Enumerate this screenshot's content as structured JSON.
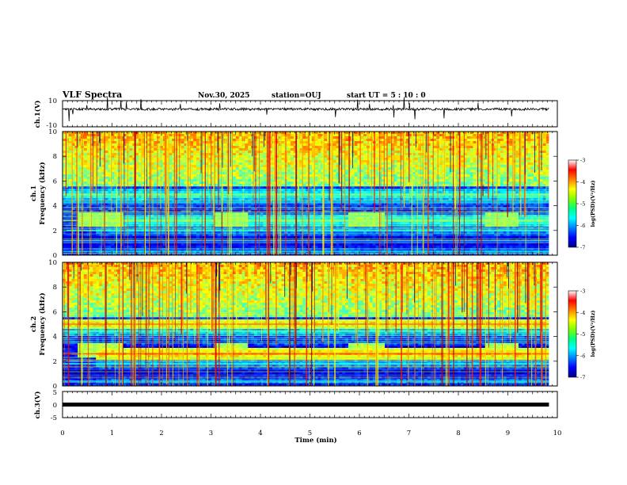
{
  "header": {
    "title": "VLF Spectra",
    "date": "Nov.30, 2025",
    "station": "station=OUJ",
    "start": "start  UT =   5 : 10 : 0"
  },
  "panels": {
    "ch1_wave": {
      "ylabel": "ch.1(V)",
      "yticks": [
        "10",
        "-10"
      ]
    },
    "ch1_spec": {
      "ylabel_top": "ch.1",
      "ylabel": "Frequency (kHz)",
      "yticks": [
        "0",
        "2",
        "4",
        "6",
        "8",
        "10"
      ]
    },
    "ch2_spec": {
      "ylabel_top": "ch.2",
      "ylabel": "Frequency (kHz)",
      "yticks": [
        "0",
        "2",
        "4",
        "6",
        "8",
        "10"
      ]
    },
    "ch3_wave": {
      "ylabel": "ch.3(V)",
      "yticks": [
        "5",
        "0",
        "-5"
      ]
    }
  },
  "colorbar": {
    "label": "log(PSD)(V²/Hz)",
    "ticks": [
      "-3",
      "-4",
      "-5",
      "-6",
      "-7"
    ],
    "colors": [
      "#000080",
      "#0000ff",
      "#0080ff",
      "#00ffff",
      "#00ff80",
      "#80ff00",
      "#ffff00",
      "#ff8000",
      "#ff0000",
      "#ffffff"
    ]
  },
  "xaxis": {
    "label": "Time (min)",
    "ticks": [
      "0",
      "1",
      "2",
      "3",
      "4",
      "5",
      "6",
      "7",
      "8",
      "9",
      "10"
    ]
  },
  "chart_data": {
    "type": "heatmap",
    "title": "VLF Spectra",
    "xlabel": "Time (min)",
    "xlim": [
      0,
      10
    ],
    "data_end_min": 9.83,
    "ch1_wave": {
      "ylim": [
        -10,
        10
      ],
      "baseline_v": 3.5
    },
    "ch3_wave": {
      "ylim": [
        -5,
        5
      ],
      "level_v": 0
    },
    "spectrogram": {
      "ylabel": "Frequency (kHz)",
      "ylim_khz": [
        0,
        10
      ],
      "zlabel": "log(PSD)(V²/Hz)",
      "zlim": [
        -7,
        -3
      ],
      "ch1_bands_khz": [
        {
          "f": 4.9,
          "level": -5.3
        },
        {
          "f": 4.3,
          "level": -6.0
        },
        {
          "f": 2.8,
          "level": -5.2
        },
        {
          "f": 2.0,
          "level": -5.8
        },
        {
          "f": 1.1,
          "level": -6.4
        },
        {
          "f": 0.3,
          "level": -6.0
        }
      ],
      "ch2_bands_khz": [
        {
          "f": 5.0,
          "level": -4.3
        },
        {
          "f": 4.4,
          "level": -5.6
        },
        {
          "f": 2.6,
          "level": -4.2
        },
        {
          "f": 1.8,
          "level": -5.8
        },
        {
          "f": 0.4,
          "level": -6.0
        }
      ]
    }
  }
}
